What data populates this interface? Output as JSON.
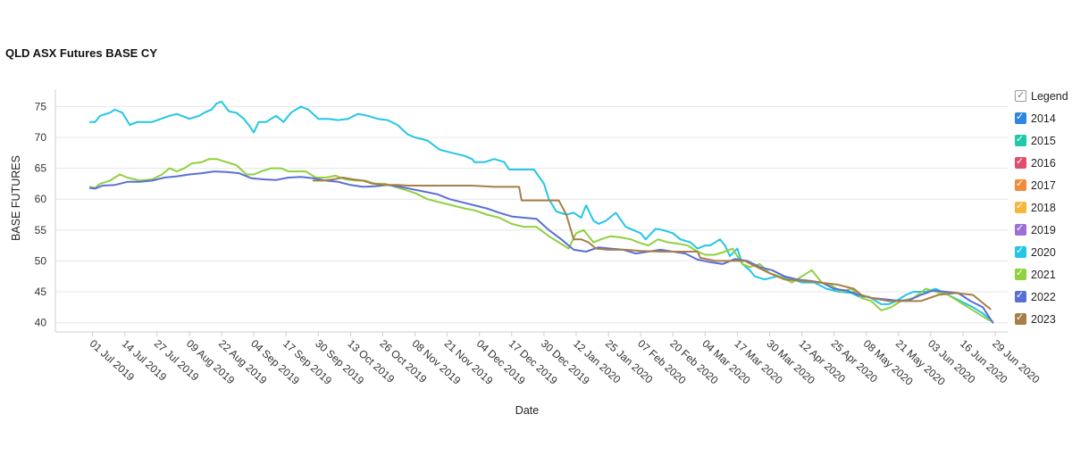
{
  "chart_data": {
    "type": "line",
    "title": "QLD ASX Futures BASE CY",
    "xlabel": "Date",
    "ylabel": "BASE FUTURES",
    "x_range": [
      "2019-06-16",
      "2020-07-04"
    ],
    "ylim": [
      38.5,
      77.8
    ],
    "y_ticks": [
      40,
      45,
      50,
      55,
      60,
      65,
      70,
      75
    ],
    "x_ticks": [
      "01 Jul 2019",
      "14 Jul 2019",
      "27 Jul 2019",
      "09 Aug 2019",
      "22 Aug 2019",
      "04 Sep 2019",
      "17 Sep 2019",
      "30 Sep 2019",
      "13 Oct 2019",
      "26 Oct 2019",
      "08 Nov 2019",
      "21 Nov 2019",
      "04 Dec 2019",
      "17 Dec 2019",
      "30 Dec 2019",
      "12 Jan 2020",
      "25 Jan 2020",
      "07 Feb 2020",
      "20 Feb 2020",
      "04 Mar 2020",
      "17 Mar 2020",
      "30 Mar 2020",
      "12 Apr 2020",
      "25 Apr 2020",
      "08 May 2020",
      "21 May 2020",
      "03 Jun 2020",
      "16 Jun 2020",
      "29 Jun 2020"
    ],
    "grid": "horizontal",
    "legend_position": "right",
    "legend_header": "Legend",
    "series": [
      {
        "name": "2014",
        "color": "#2f86e0",
        "x": [],
        "y": []
      },
      {
        "name": "2015",
        "color": "#1fc9a7",
        "x": [],
        "y": []
      },
      {
        "name": "2016",
        "color": "#e44b6d",
        "x": [],
        "y": []
      },
      {
        "name": "2017",
        "color": "#f28c38",
        "x": [],
        "y": []
      },
      {
        "name": "2018",
        "color": "#f6b73c",
        "x": [],
        "y": []
      },
      {
        "name": "2019",
        "color": "#9b6fd6",
        "x": [],
        "y": []
      },
      {
        "name": "2020",
        "color": "#23c6e6",
        "x": [
          "2019-06-30",
          "2019-07-02",
          "2019-07-04",
          "2019-07-08",
          "2019-07-10",
          "2019-07-13",
          "2019-07-16",
          "2019-07-19",
          "2019-07-21",
          "2019-07-25",
          "2019-08-01",
          "2019-08-04",
          "2019-08-06",
          "2019-08-09",
          "2019-08-13",
          "2019-08-15",
          "2019-08-18",
          "2019-08-20",
          "2019-08-22",
          "2019-08-25",
          "2019-08-28",
          "2019-08-31",
          "2019-09-02",
          "2019-09-04",
          "2019-09-06",
          "2019-09-09",
          "2019-09-11",
          "2019-09-13",
          "2019-09-16",
          "2019-09-19",
          "2019-09-23",
          "2019-09-26",
          "2019-09-30",
          "2019-10-04",
          "2019-10-08",
          "2019-10-12",
          "2019-10-16",
          "2019-10-20",
          "2019-10-24",
          "2019-10-28",
          "2019-11-01",
          "2019-11-05",
          "2019-11-08",
          "2019-11-13",
          "2019-11-18",
          "2019-11-23",
          "2019-11-28",
          "2019-12-01",
          "2019-12-02",
          "2019-12-06",
          "2019-12-10",
          "2019-12-14",
          "2019-12-16",
          "2019-12-26",
          "2019-12-30",
          "2020-01-01",
          "2020-01-04",
          "2020-01-08",
          "2020-01-11",
          "2020-01-14",
          "2020-01-16",
          "2020-01-19",
          "2020-01-21",
          "2020-01-24",
          "2020-01-28",
          "2020-02-01",
          "2020-02-04",
          "2020-02-07",
          "2020-02-09",
          "2020-02-13",
          "2020-02-16",
          "2020-02-20",
          "2020-02-23",
          "2020-02-27",
          "2020-03-01",
          "2020-03-04",
          "2020-03-06",
          "2020-03-10",
          "2020-03-12",
          "2020-03-14",
          "2020-03-17",
          "2020-03-19",
          "2020-03-22",
          "2020-03-24",
          "2020-03-28",
          "2020-04-02",
          "2020-04-07",
          "2020-04-12",
          "2020-04-17",
          "2020-04-22",
          "2020-04-27",
          "2020-05-02",
          "2020-05-05",
          "2020-05-09",
          "2020-05-14",
          "2020-05-17",
          "2020-05-20",
          "2020-05-24",
          "2020-05-27",
          "2020-06-01",
          "2020-06-05",
          "2020-06-10",
          "2020-06-15",
          "2020-06-20",
          "2020-06-24",
          "2020-06-27"
        ],
        "y": [
          72.5,
          72.5,
          73.5,
          74.0,
          74.5,
          74.0,
          72.0,
          72.5,
          72.5,
          72.5,
          73.5,
          73.8,
          73.5,
          73.0,
          73.5,
          74.0,
          74.5,
          75.5,
          75.8,
          74.2,
          74.0,
          73.0,
          72.0,
          70.8,
          72.5,
          72.5,
          73.0,
          73.5,
          72.5,
          74.0,
          75.0,
          74.5,
          73.0,
          73.0,
          72.8,
          73.0,
          73.8,
          73.5,
          73.0,
          72.8,
          72.0,
          70.5,
          70.0,
          69.5,
          68.0,
          67.5,
          67.0,
          66.5,
          66.0,
          66.0,
          66.5,
          66.0,
          64.8,
          64.8,
          62.5,
          60.0,
          58.0,
          57.5,
          57.8,
          57.0,
          59.0,
          56.5,
          56.0,
          56.5,
          57.8,
          55.5,
          55.0,
          54.5,
          53.5,
          55.2,
          55.0,
          54.5,
          53.5,
          53.0,
          52.0,
          52.5,
          52.5,
          53.5,
          52.5,
          50.8,
          52.0,
          49.5,
          48.5,
          47.5,
          47.0,
          47.5,
          47.2,
          46.5,
          46.5,
          45.5,
          45.0,
          44.8,
          44.2,
          44.2,
          43.0,
          43.0,
          43.5,
          44.5,
          45.0,
          45.0,
          45.5,
          44.5,
          43.5,
          42.5,
          41.5,
          40.5
        ]
      },
      {
        "name": "2021",
        "color": "#8fd13f",
        "x": [
          "2019-06-30",
          "2019-07-02",
          "2019-07-04",
          "2019-07-08",
          "2019-07-12",
          "2019-07-15",
          "2019-07-20",
          "2019-07-25",
          "2019-07-29",
          "2019-08-01",
          "2019-08-04",
          "2019-08-07",
          "2019-08-10",
          "2019-08-14",
          "2019-08-17",
          "2019-08-20",
          "2019-08-24",
          "2019-08-28",
          "2019-09-01",
          "2019-09-04",
          "2019-09-07",
          "2019-09-11",
          "2019-09-15",
          "2019-09-18",
          "2019-09-21",
          "2019-09-25",
          "2019-09-29",
          "2019-10-03",
          "2019-10-07",
          "2019-10-11",
          "2019-10-15",
          "2019-10-19",
          "2019-10-23",
          "2019-10-27",
          "2019-10-31",
          "2019-11-04",
          "2019-11-08",
          "2019-11-13",
          "2019-11-18",
          "2019-11-23",
          "2019-11-28",
          "2019-12-02",
          "2019-12-07",
          "2019-12-12",
          "2019-12-17",
          "2019-12-22",
          "2019-12-27",
          "2020-01-01",
          "2020-01-05",
          "2020-01-09",
          "2020-01-12",
          "2020-01-15",
          "2020-01-19",
          "2020-01-22",
          "2020-01-26",
          "2020-01-30",
          "2020-02-03",
          "2020-02-06",
          "2020-02-10",
          "2020-02-14",
          "2020-02-18",
          "2020-02-22",
          "2020-02-26",
          "2020-03-01",
          "2020-03-04",
          "2020-03-08",
          "2020-03-12",
          "2020-03-15",
          "2020-03-19",
          "2020-03-22",
          "2020-03-26",
          "2020-03-30",
          "2020-04-03",
          "2020-04-08",
          "2020-04-12",
          "2020-04-16",
          "2020-04-20",
          "2020-04-24",
          "2020-04-28",
          "2020-05-02",
          "2020-05-06",
          "2020-05-10",
          "2020-05-14",
          "2020-05-18",
          "2020-05-22",
          "2020-05-27",
          "2020-06-01",
          "2020-06-05",
          "2020-06-10",
          "2020-06-14",
          "2020-06-18",
          "2020-06-22",
          "2020-06-26",
          "2020-06-28"
        ],
        "y": [
          62.0,
          61.8,
          62.5,
          63.0,
          64.0,
          63.5,
          63.0,
          63.2,
          64.0,
          65.0,
          64.5,
          65.0,
          65.8,
          66.0,
          66.5,
          66.5,
          66.0,
          65.5,
          64.0,
          64.0,
          64.5,
          65.0,
          65.0,
          64.5,
          64.5,
          64.5,
          63.5,
          63.5,
          63.8,
          63.2,
          63.0,
          63.0,
          62.5,
          62.5,
          62.0,
          61.5,
          61.0,
          60.0,
          59.5,
          59.0,
          58.5,
          58.2,
          57.5,
          57.0,
          56.0,
          55.5,
          55.5,
          54.0,
          53.0,
          52.0,
          54.5,
          55.0,
          53.0,
          53.5,
          54.0,
          53.8,
          53.5,
          53.0,
          52.5,
          53.5,
          53.0,
          52.8,
          52.5,
          51.5,
          51.0,
          51.0,
          51.5,
          52.0,
          49.5,
          49.0,
          49.5,
          48.0,
          47.5,
          46.5,
          47.5,
          48.5,
          46.5,
          46.0,
          45.0,
          45.5,
          44.0,
          43.5,
          42.0,
          42.5,
          43.5,
          44.0,
          45.5,
          45.0,
          44.5,
          43.5,
          42.5,
          41.5,
          40.5,
          40.2
        ]
      },
      {
        "name": "2022",
        "color": "#5a6fd6",
        "x": [
          "2019-06-30",
          "2019-07-02",
          "2019-07-05",
          "2019-07-10",
          "2019-07-15",
          "2019-07-20",
          "2019-07-25",
          "2019-07-30",
          "2019-08-04",
          "2019-08-09",
          "2019-08-14",
          "2019-08-19",
          "2019-08-24",
          "2019-08-29",
          "2019-09-03",
          "2019-09-08",
          "2019-09-13",
          "2019-09-18",
          "2019-09-23",
          "2019-09-28",
          "2019-10-03",
          "2019-10-08",
          "2019-10-13",
          "2019-10-18",
          "2019-10-23",
          "2019-10-28",
          "2019-11-02",
          "2019-11-07",
          "2019-11-12",
          "2019-11-17",
          "2019-11-22",
          "2019-11-27",
          "2019-12-02",
          "2019-12-07",
          "2019-12-12",
          "2019-12-17",
          "2019-12-22",
          "2019-12-27",
          "2020-01-01",
          "2020-01-06",
          "2020-01-11",
          "2020-01-16",
          "2020-01-21",
          "2020-01-26",
          "2020-01-31",
          "2020-02-05",
          "2020-02-10",
          "2020-02-15",
          "2020-02-20",
          "2020-02-25",
          "2020-03-01",
          "2020-03-06",
          "2020-03-11",
          "2020-03-16",
          "2020-03-21",
          "2020-03-26",
          "2020-03-31",
          "2020-04-05",
          "2020-04-10",
          "2020-04-15",
          "2020-04-20",
          "2020-04-25",
          "2020-04-30",
          "2020-05-05",
          "2020-05-10",
          "2020-05-15",
          "2020-05-20",
          "2020-05-25",
          "2020-05-30",
          "2020-06-04",
          "2020-06-09",
          "2020-06-14",
          "2020-06-19",
          "2020-06-24",
          "2020-06-28"
        ],
        "y": [
          61.8,
          61.7,
          62.2,
          62.3,
          62.8,
          62.8,
          63.0,
          63.5,
          63.7,
          64.0,
          64.2,
          64.5,
          64.4,
          64.2,
          63.4,
          63.2,
          63.1,
          63.5,
          63.6,
          63.4,
          63.0,
          62.8,
          62.3,
          62.0,
          62.1,
          62.3,
          62.0,
          61.6,
          61.2,
          60.8,
          60.0,
          59.5,
          59.0,
          58.5,
          57.8,
          57.2,
          57.0,
          56.8,
          55.0,
          53.5,
          51.8,
          51.5,
          52.2,
          52.0,
          51.8,
          51.2,
          51.5,
          51.8,
          51.5,
          51.2,
          50.2,
          49.8,
          49.5,
          50.3,
          50.0,
          49.0,
          48.5,
          47.5,
          47.0,
          46.8,
          46.5,
          45.5,
          45.2,
          44.5,
          44.0,
          43.8,
          43.6,
          43.6,
          44.5,
          45.2,
          45.0,
          44.8,
          43.5,
          42.5,
          40.0
        ]
      },
      {
        "name": "2023",
        "color": "#a87e49",
        "x": [
          "2019-09-28",
          "2019-10-02",
          "2019-10-06",
          "2019-10-10",
          "2019-10-14",
          "2019-10-18",
          "2019-10-22",
          "2019-10-27",
          "2019-11-01",
          "2019-11-05",
          "2019-11-09",
          "2019-11-20",
          "2019-12-01",
          "2019-12-10",
          "2019-12-20",
          "2019-12-21",
          "2020-01-05",
          "2020-01-08",
          "2020-01-11",
          "2020-01-14",
          "2020-01-17",
          "2020-01-20",
          "2020-01-25",
          "2020-02-01",
          "2020-02-07",
          "2020-02-15",
          "2020-02-22",
          "2020-03-01",
          "2020-03-02",
          "2020-03-08",
          "2020-03-14",
          "2020-03-20",
          "2020-03-25",
          "2020-03-30",
          "2020-04-05",
          "2020-04-12",
          "2020-04-19",
          "2020-04-26",
          "2020-05-03",
          "2020-05-06",
          "2020-05-10",
          "2020-05-17",
          "2020-05-24",
          "2020-05-30",
          "2020-06-06",
          "2020-06-13",
          "2020-06-20",
          "2020-06-27"
        ],
        "y": [
          63.0,
          63.0,
          63.2,
          63.5,
          63.2,
          63.0,
          62.5,
          62.3,
          62.3,
          62.2,
          62.2,
          62.2,
          62.2,
          62.0,
          62.0,
          59.8,
          59.8,
          57.5,
          53.5,
          53.5,
          53.0,
          52.0,
          51.8,
          51.8,
          51.6,
          51.5,
          51.5,
          51.5,
          50.5,
          50.0,
          50.0,
          50.0,
          49.0,
          48.0,
          47.0,
          46.8,
          46.5,
          46.2,
          45.5,
          44.5,
          44.0,
          43.5,
          43.5,
          43.5,
          44.5,
          44.8,
          44.5,
          42.2
        ]
      }
    ]
  }
}
